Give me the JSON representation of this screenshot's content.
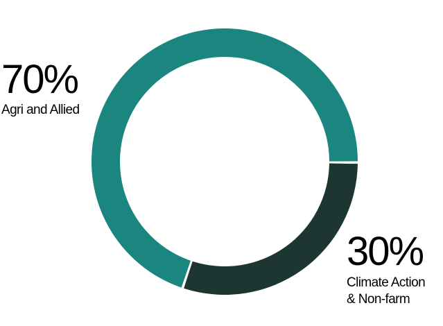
{
  "chart_data": {
    "type": "pie",
    "donut": true,
    "categories": [
      "Agri and Allied",
      "Climate Action & Non-farm"
    ],
    "values": [
      70,
      30
    ],
    "value_labels": [
      "70%",
      "30%"
    ],
    "category_labels": [
      "Agri and Allied",
      "Climate Action\n& Non-farm"
    ],
    "colors": [
      "#1b8580",
      "#1e3631"
    ],
    "title": "",
    "legend": "none"
  }
}
